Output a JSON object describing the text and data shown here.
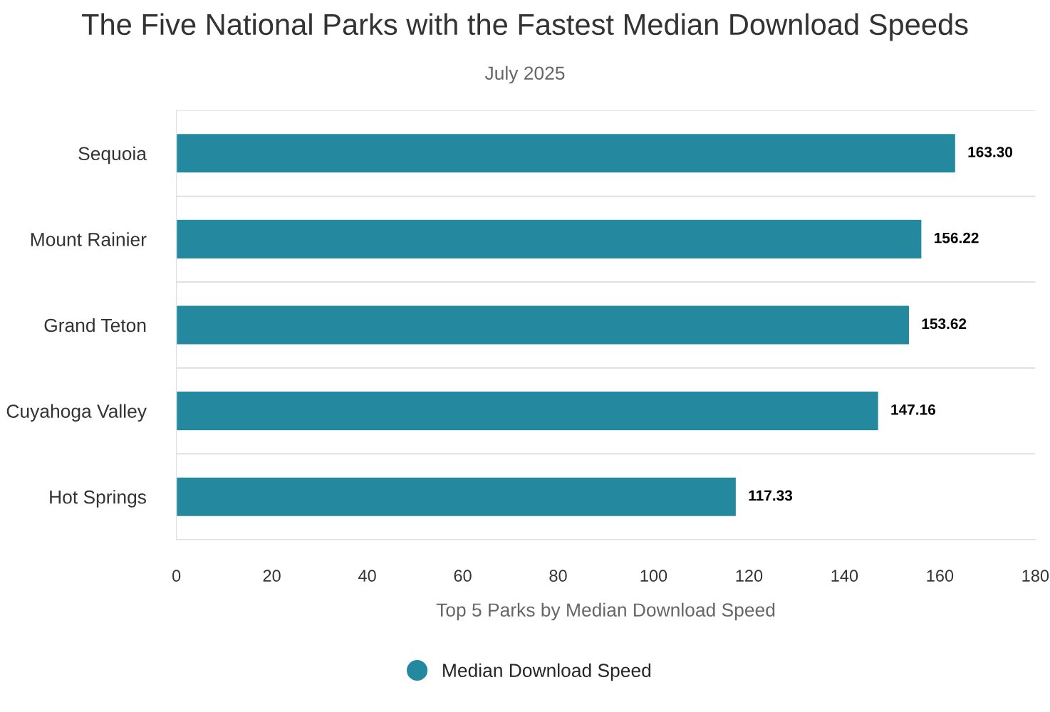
{
  "chart_data": {
    "type": "bar",
    "orientation": "horizontal",
    "title": "The Five National Parks with the Fastest Median Download Speeds",
    "subtitle": "July 2025",
    "xlabel": "Top 5 Parks by Median Download Speed",
    "categories": [
      "Sequoia",
      "Mount Rainier",
      "Grand Teton",
      "Cuyahoga Valley",
      "Hot Springs"
    ],
    "series": [
      {
        "name": "Median Download Speed",
        "color": "#24889e",
        "values": [
          163.3,
          156.22,
          153.62,
          147.16,
          117.33
        ],
        "value_labels": [
          "163.30",
          "156.22",
          "153.62",
          "147.16",
          "117.33"
        ]
      }
    ],
    "xlim": [
      0,
      180
    ],
    "xticks": [
      0,
      20,
      40,
      60,
      80,
      100,
      120,
      140,
      160,
      180
    ],
    "grid": "y",
    "legend": "bottom",
    "marker": "circle"
  }
}
